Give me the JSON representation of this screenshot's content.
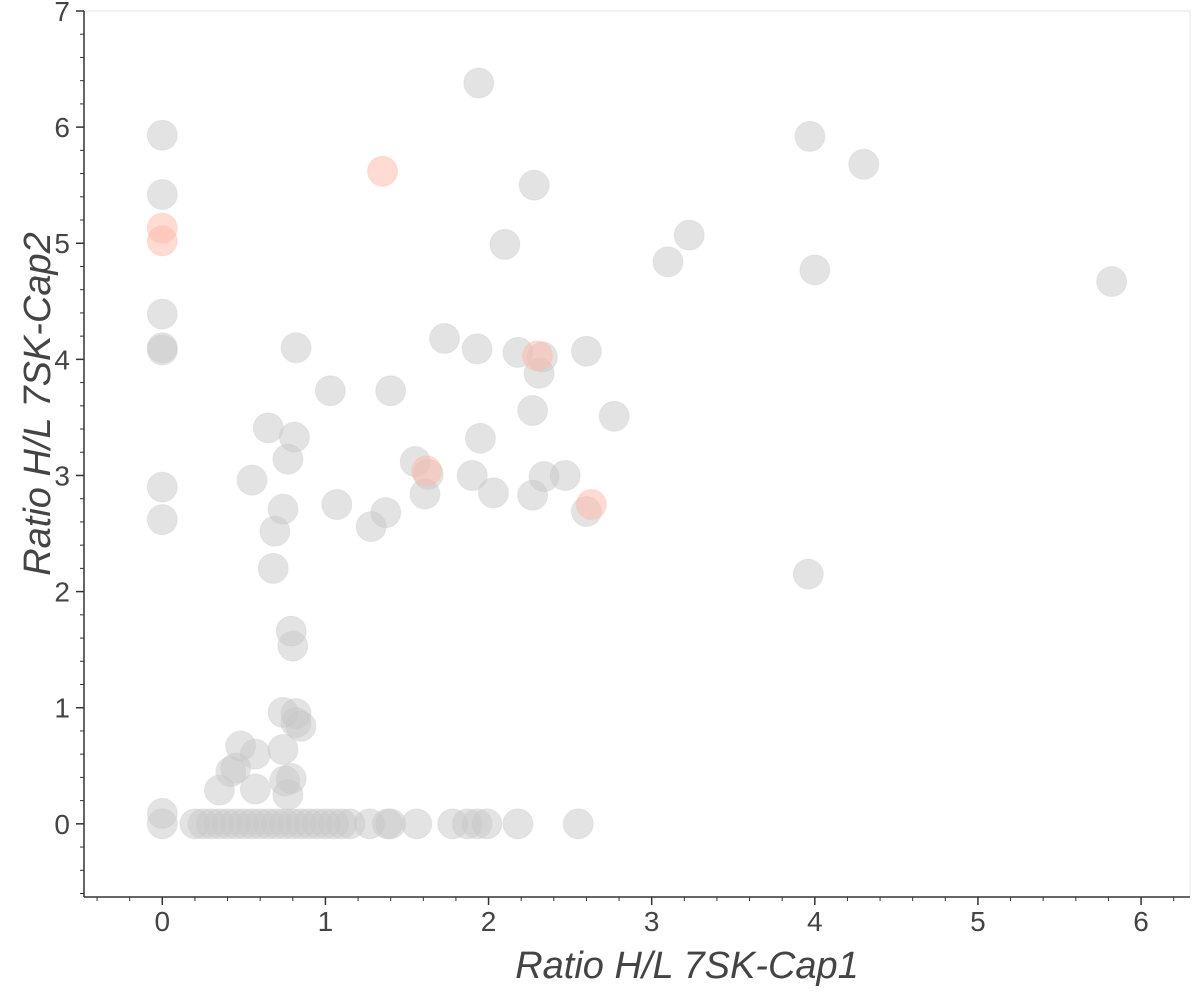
{
  "chart_data": {
    "type": "scatter",
    "xlabel": "Ratio H/L 7SK-Cap1",
    "ylabel": "Ratio H/L 7SK-Cap2",
    "xlim": [
      -0.48,
      6.3
    ],
    "ylim": [
      -0.63,
      7.0
    ],
    "xticks": [
      0,
      1,
      2,
      3,
      4,
      5,
      6
    ],
    "yticks": [
      0,
      1,
      2,
      3,
      4,
      5,
      6,
      7
    ],
    "xtick_labels": [
      "0",
      "1",
      "2",
      "3",
      "4",
      "5",
      "6"
    ],
    "ytick_labels": [
      "0",
      "1",
      "2",
      "3",
      "4",
      "5",
      "6",
      "7"
    ],
    "grid": false,
    "legend": "none",
    "colors": {
      "default": "#c8c8c8",
      "highlight": "#ffb8a8",
      "axis": "#333333",
      "text": "#444444"
    },
    "series": [
      {
        "color_key": "default",
        "x": [
          1.94,
          3.97,
          4.3,
          0.0,
          0.0,
          2.28,
          2.1,
          3.23,
          3.1,
          4.0,
          5.82,
          0.0,
          0.0,
          0.0,
          1.73,
          0.82,
          1.93,
          2.18,
          2.33,
          2.6,
          2.31,
          1.03,
          1.4,
          2.27,
          2.77,
          0.65,
          0.81,
          1.95,
          0.77,
          1.55,
          1.63,
          1.9,
          2.34,
          2.47,
          0.0,
          0.55,
          1.61,
          2.03,
          2.27,
          0.74,
          1.07,
          1.37,
          2.6,
          0.0,
          1.28,
          0.69,
          0.68,
          3.96,
          0.79,
          0.8,
          0.74,
          0.82,
          0.82,
          0.85,
          0.74,
          0.48,
          0.57,
          0.45,
          0.42,
          0.75,
          0.79,
          0.35,
          0.57,
          0.77,
          0.0,
          0.0,
          0.2,
          0.25,
          0.3,
          0.35,
          0.4,
          0.45,
          0.5,
          0.55,
          0.6,
          0.65,
          0.7,
          0.75,
          0.8,
          0.85,
          0.9,
          0.95,
          1.0,
          1.05,
          1.1,
          1.15,
          1.27,
          1.38,
          1.4,
          1.56,
          1.78,
          1.87,
          1.93,
          1.99,
          2.18,
          2.55
        ],
        "y": [
          6.38,
          5.92,
          5.68,
          5.93,
          5.42,
          5.5,
          4.99,
          5.07,
          4.84,
          4.77,
          4.67,
          4.39,
          4.1,
          4.08,
          4.18,
          4.1,
          4.09,
          4.06,
          4.02,
          4.07,
          3.88,
          3.73,
          3.73,
          3.56,
          3.51,
          3.41,
          3.33,
          3.32,
          3.14,
          3.12,
          3.01,
          3.0,
          2.99,
          3.0,
          2.9,
          2.96,
          2.84,
          2.85,
          2.83,
          2.71,
          2.75,
          2.68,
          2.69,
          2.62,
          2.56,
          2.52,
          2.2,
          2.15,
          1.66,
          1.53,
          0.96,
          0.95,
          0.87,
          0.84,
          0.64,
          0.67,
          0.6,
          0.48,
          0.45,
          0.37,
          0.39,
          0.29,
          0.3,
          0.25,
          0.09,
          0.0,
          0.0,
          0.0,
          0.0,
          0.0,
          0.0,
          0.0,
          0.0,
          0.0,
          0.0,
          0.0,
          0.0,
          0.0,
          0.0,
          0.0,
          0.0,
          0.0,
          0.0,
          0.0,
          0.0,
          0.0,
          0.0,
          0.0,
          0.0,
          0.0,
          0.0,
          0.0,
          0.0,
          0.0,
          0.0,
          0.0
        ]
      },
      {
        "color_key": "highlight",
        "x": [
          1.35,
          0.0,
          0.0,
          2.3,
          1.62,
          2.63
        ],
        "y": [
          5.62,
          5.13,
          5.02,
          4.03,
          3.04,
          2.75
        ]
      }
    ]
  }
}
